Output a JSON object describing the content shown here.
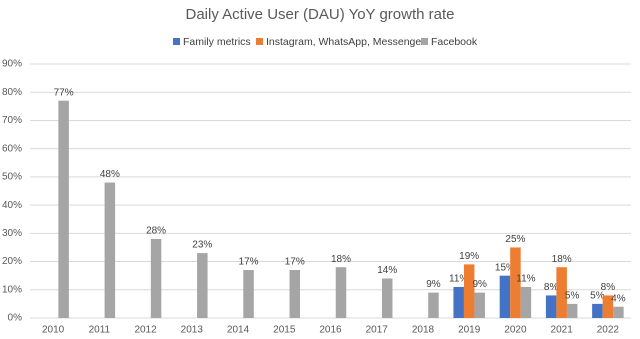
{
  "chart_data": {
    "type": "bar",
    "title": "Daily Active User (DAU) YoY growth rate",
    "categories": [
      "2010",
      "2011",
      "2012",
      "2013",
      "2014",
      "2015",
      "2016",
      "2017",
      "2018",
      "2019",
      "2020",
      "2021",
      "2022"
    ],
    "series": [
      {
        "name": "Family metrics",
        "color": "#4472c4",
        "values": [
          null,
          null,
          null,
          null,
          null,
          null,
          null,
          null,
          null,
          11,
          15,
          8,
          5
        ],
        "value_labels": [
          null,
          null,
          null,
          null,
          null,
          null,
          null,
          null,
          null,
          "11%",
          "15%",
          "8%",
          "5%"
        ]
      },
      {
        "name": "Instagram, WhatsApp, Messenger",
        "color": "#ed7d31",
        "values": [
          null,
          null,
          null,
          null,
          null,
          null,
          null,
          null,
          null,
          19,
          25,
          18,
          8
        ],
        "value_labels": [
          null,
          null,
          null,
          null,
          null,
          null,
          null,
          null,
          null,
          "19%",
          "25%",
          "18%",
          "8%"
        ]
      },
      {
        "name": "Facebook",
        "color": "#a5a5a5",
        "values": [
          77,
          48,
          28,
          23,
          17,
          17,
          18,
          14,
          9,
          9,
          11,
          5,
          4
        ],
        "value_labels": [
          "77%",
          "48%",
          "28%",
          "23%",
          "17%",
          "17%",
          "18%",
          "14%",
          "9%",
          "9%",
          "11%",
          "5%",
          "4%"
        ]
      }
    ],
    "ylim": [
      0,
      90
    ],
    "yticks": [
      {
        "value": 0,
        "label": "0%"
      },
      {
        "value": 10,
        "label": "10%"
      },
      {
        "value": 20,
        "label": "20%"
      },
      {
        "value": 30,
        "label": "30%"
      },
      {
        "value": 40,
        "label": "40%"
      },
      {
        "value": 50,
        "label": "50%"
      },
      {
        "value": 60,
        "label": "60%"
      },
      {
        "value": 70,
        "label": "70%"
      },
      {
        "value": 80,
        "label": "80%"
      },
      {
        "value": 90,
        "label": "90%"
      }
    ],
    "grid": true,
    "legend": "top"
  }
}
